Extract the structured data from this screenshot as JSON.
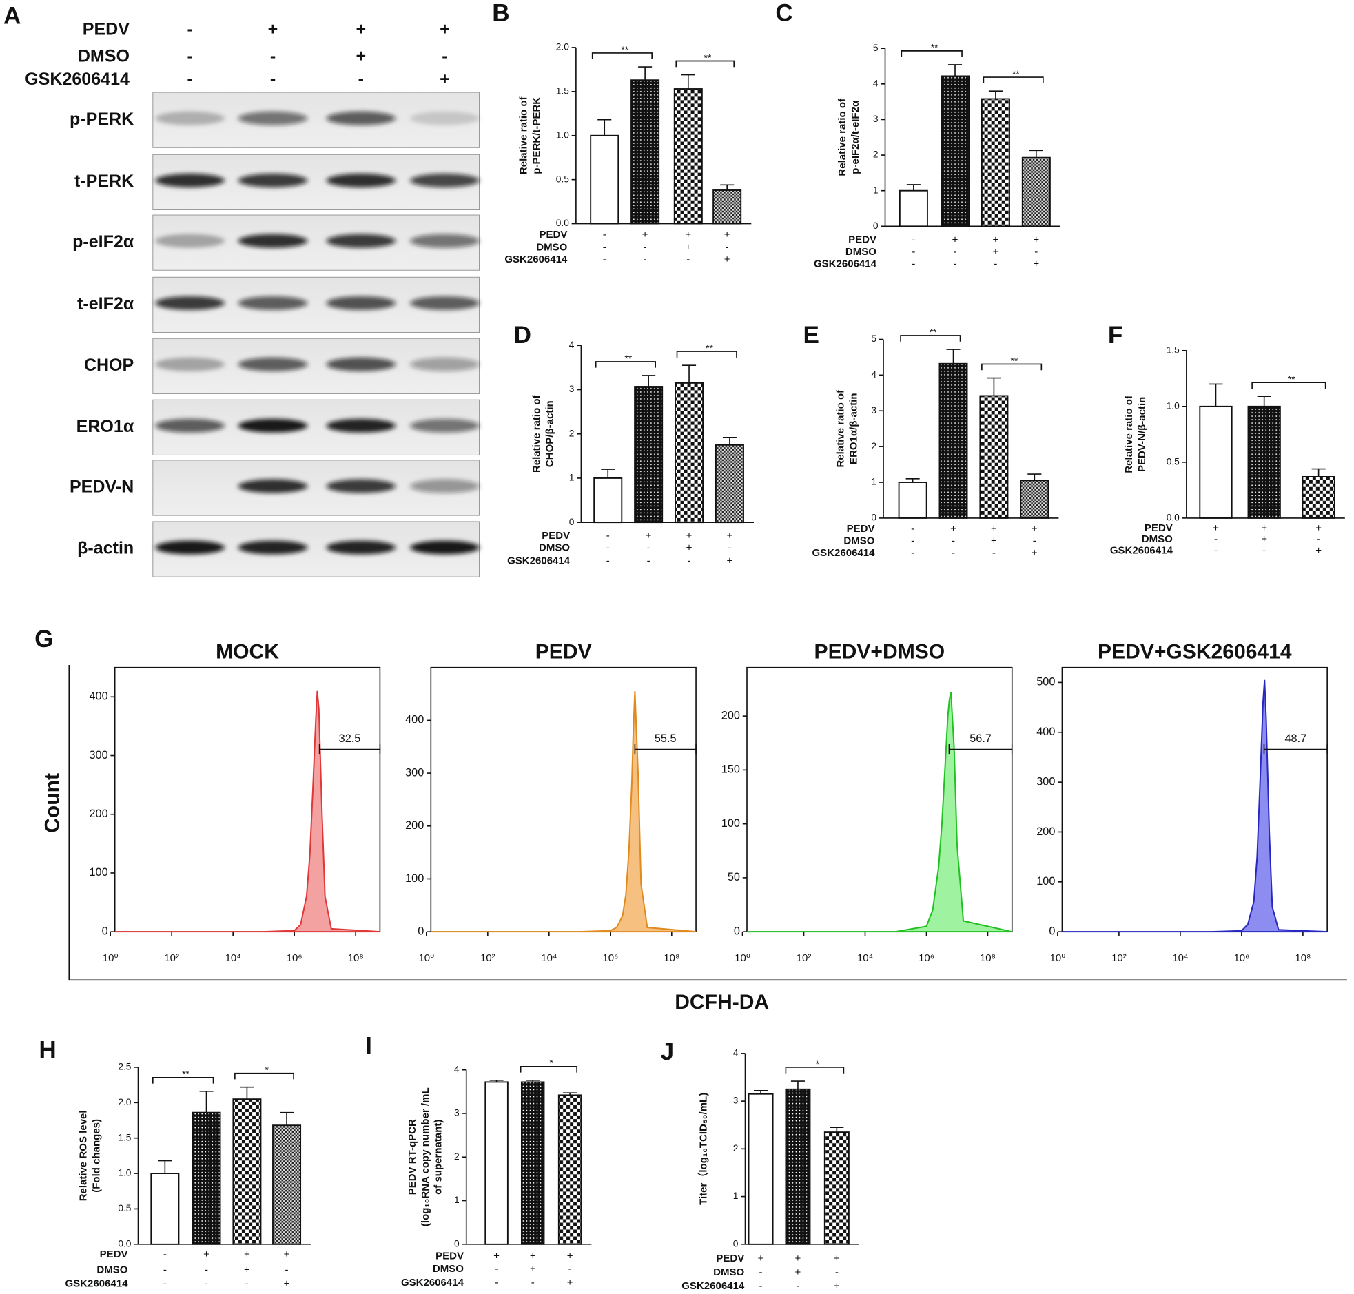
{
  "blot": {
    "panel": "A",
    "conditions": [
      {
        "name": "PEDV",
        "signs": [
          "-",
          "+",
          "+",
          "+"
        ]
      },
      {
        "name": "DMSO",
        "signs": [
          "-",
          "-",
          "+",
          "-"
        ]
      },
      {
        "name": "GSK2606414",
        "signs": [
          "-",
          "-",
          "-",
          "+"
        ]
      }
    ],
    "bands": [
      {
        "label": "p-PERK",
        "intensity": [
          0.25,
          0.55,
          0.65,
          0.15
        ]
      },
      {
        "label": "t-PERK",
        "intensity": [
          0.85,
          0.8,
          0.85,
          0.75
        ]
      },
      {
        "label": "p-eIF2α",
        "intensity": [
          0.3,
          0.85,
          0.8,
          0.55
        ]
      },
      {
        "label": "t-eIF2α",
        "intensity": [
          0.8,
          0.65,
          0.7,
          0.65
        ]
      },
      {
        "label": "CHOP",
        "intensity": [
          0.3,
          0.65,
          0.7,
          0.35
        ]
      },
      {
        "label": "ERO1α",
        "intensity": [
          0.65,
          0.95,
          0.9,
          0.55
        ]
      },
      {
        "label": "PEDV-N",
        "intensity": [
          0,
          0.85,
          0.8,
          0.4
        ]
      },
      {
        "label": "β-actin",
        "intensity": [
          0.95,
          0.9,
          0.9,
          0.95
        ]
      }
    ]
  },
  "flow": {
    "panel": "G",
    "ylabel": "Count",
    "xlabel": "DCFH-DA"
  },
  "chart_data": [
    {
      "type": "bar",
      "panel": "B",
      "ylabel": [
        "Relative ratio of",
        "p-PERK/t-PERK"
      ],
      "ylim": [
        0,
        2
      ],
      "yticks": [
        {
          "value": 0,
          "label": "0.0"
        },
        0.5,
        {
          "value": 1,
          "label": "1.0"
        },
        1.5,
        {
          "value": 2,
          "label": "2.0"
        }
      ],
      "values": [
        1.0,
        1.63,
        1.53,
        0.38
      ],
      "errors": [
        0.18,
        0.15,
        0.16,
        0.06
      ],
      "patterns": [
        "open",
        "dots",
        "checker",
        "fine-checker"
      ],
      "conditions": [
        {
          "name": "PEDV",
          "signs": [
            "-",
            "+",
            "+",
            "+"
          ]
        },
        {
          "name": "DMSO",
          "signs": [
            "-",
            "-",
            "+",
            "-"
          ]
        },
        {
          "name": "GSK2606414",
          "signs": [
            "-",
            "-",
            "-",
            "+"
          ]
        }
      ],
      "brackets": [
        {
          "bars": [
            0,
            1
          ],
          "label": "**"
        },
        {
          "bars": [
            2,
            3
          ],
          "label": "**"
        }
      ]
    },
    {
      "type": "bar",
      "panel": "C",
      "ylabel": [
        "Relative ratio of",
        "p-eIF2α/t-eIF2α"
      ],
      "ylim": [
        0,
        5
      ],
      "yticks": [
        0,
        1,
        2,
        3,
        4,
        5
      ],
      "values": [
        1.0,
        4.22,
        3.58,
        1.93
      ],
      "errors": [
        0.17,
        0.32,
        0.22,
        0.2
      ],
      "patterns": [
        "open",
        "dots",
        "checker",
        "fine-checker"
      ],
      "conditions": [
        {
          "name": "PEDV",
          "signs": [
            "-",
            "+",
            "+",
            "+"
          ]
        },
        {
          "name": "DMSO",
          "signs": [
            "-",
            "-",
            "+",
            "-"
          ]
        },
        {
          "name": "GSK2606414",
          "signs": [
            "-",
            "-",
            "-",
            "+"
          ]
        }
      ],
      "brackets": [
        {
          "bars": [
            0,
            1
          ],
          "label": "**"
        },
        {
          "bars": [
            2,
            3
          ],
          "label": "**"
        }
      ]
    },
    {
      "type": "bar",
      "panel": "D",
      "ylabel": [
        "Relative ratio of",
        "CHOP/β-actin"
      ],
      "ylim": [
        0,
        4
      ],
      "yticks": [
        0,
        1,
        2,
        3,
        4
      ],
      "values": [
        1.0,
        3.07,
        3.15,
        1.75
      ],
      "errors": [
        0.2,
        0.25,
        0.4,
        0.17
      ],
      "patterns": [
        "open",
        "dots",
        "checker",
        "fine-checker"
      ],
      "conditions": [
        {
          "name": "PEDV",
          "signs": [
            "-",
            "+",
            "+",
            "+"
          ]
        },
        {
          "name": "DMSO",
          "signs": [
            "-",
            "-",
            "+",
            "-"
          ]
        },
        {
          "name": "GSK2606414",
          "signs": [
            "-",
            "-",
            "-",
            "+"
          ]
        }
      ],
      "brackets": [
        {
          "bars": [
            0,
            1
          ],
          "label": "**"
        },
        {
          "bars": [
            2,
            3
          ],
          "label": "**"
        }
      ]
    },
    {
      "type": "bar",
      "panel": "E",
      "ylabel": [
        "Relative ratio of",
        "ERO1α/β-actin"
      ],
      "ylim": [
        0,
        5
      ],
      "yticks": [
        0,
        1,
        2,
        3,
        4,
        5
      ],
      "values": [
        1.0,
        4.32,
        3.42,
        1.05
      ],
      "errors": [
        0.1,
        0.4,
        0.5,
        0.18
      ],
      "patterns": [
        "open",
        "dots",
        "checker",
        "fine-checker"
      ],
      "conditions": [
        {
          "name": "PEDV",
          "signs": [
            "-",
            "+",
            "+",
            "+"
          ]
        },
        {
          "name": "DMSO",
          "signs": [
            "-",
            "-",
            "+",
            "-"
          ]
        },
        {
          "name": "GSK2606414",
          "signs": [
            "-",
            "-",
            "-",
            "+"
          ]
        }
      ],
      "brackets": [
        {
          "bars": [
            0,
            1
          ],
          "label": "**"
        },
        {
          "bars": [
            2,
            3
          ],
          "label": "**"
        }
      ]
    },
    {
      "type": "bar",
      "panel": "F",
      "ylabel": [
        "Relative ratio of",
        "PEDV-N/β-actin"
      ],
      "ylim": [
        0,
        1.5
      ],
      "yticks": [
        {
          "value": 0,
          "label": "0.0"
        },
        0.5,
        {
          "value": 1,
          "label": "1.0"
        },
        1.5
      ],
      "values": [
        1.0,
        1.0,
        0.37
      ],
      "errors": [
        0.2,
        0.09,
        0.07
      ],
      "patterns": [
        "open",
        "dots",
        "checker"
      ],
      "conditions": [
        {
          "name": "PEDV",
          "signs": [
            "+",
            "+",
            "+"
          ]
        },
        {
          "name": "DMSO",
          "signs": [
            "-",
            "+",
            "-"
          ]
        },
        {
          "name": "GSK2606414",
          "signs": [
            "-",
            "-",
            "+"
          ]
        }
      ],
      "brackets": [
        {
          "bars": [
            1,
            2
          ],
          "label": "**"
        }
      ]
    },
    {
      "type": "bar",
      "panel": "H",
      "ylabel": [
        "Relative ROS level",
        "(Fold changes)"
      ],
      "ylim": [
        0,
        2.5
      ],
      "yticks": [
        {
          "value": 0,
          "label": "0.0"
        },
        0.5,
        {
          "value": 1,
          "label": "1.0"
        },
        1.5,
        {
          "value": 2,
          "label": "2.0"
        },
        2.5
      ],
      "values": [
        1.0,
        1.86,
        2.05,
        1.68
      ],
      "errors": [
        0.18,
        0.3,
        0.17,
        0.18
      ],
      "patterns": [
        "open",
        "dots",
        "checker",
        "fine-checker"
      ],
      "conditions": [
        {
          "name": "PEDV",
          "signs": [
            "-",
            "+",
            "+",
            "+"
          ]
        },
        {
          "name": "DMSO",
          "signs": [
            "-",
            "-",
            "+",
            "-"
          ]
        },
        {
          "name": "GSK2606414",
          "signs": [
            "-",
            "-",
            "-",
            "+"
          ]
        }
      ],
      "brackets": [
        {
          "bars": [
            0,
            1
          ],
          "label": "**"
        },
        {
          "bars": [
            2,
            3
          ],
          "label": "*"
        }
      ]
    },
    {
      "type": "bar",
      "panel": "I",
      "ylabel": [
        "PEDV RT-qPCR",
        "(log₁₀RNA copy number /mL",
        "of supernatant)"
      ],
      "ylim": [
        0,
        4
      ],
      "yticks": [
        0,
        1,
        2,
        3,
        4
      ],
      "values": [
        3.72,
        3.72,
        3.42
      ],
      "errors": [
        0.04,
        0.04,
        0.05
      ],
      "patterns": [
        "open",
        "dots",
        "checker"
      ],
      "conditions": [
        {
          "name": "PEDV",
          "signs": [
            "+",
            "+",
            "+"
          ]
        },
        {
          "name": "DMSO",
          "signs": [
            "-",
            "+",
            "-"
          ]
        },
        {
          "name": "GSK2606414",
          "signs": [
            "-",
            "-",
            "+"
          ]
        }
      ],
      "brackets": [
        {
          "bars": [
            1,
            2
          ],
          "label": "*"
        }
      ]
    },
    {
      "type": "bar",
      "panel": "J",
      "ylabel": [
        "Titer（log₁₀TCID₅₀/mL)"
      ],
      "ylim": [
        0,
        4
      ],
      "yticks": [
        0,
        1,
        2,
        3,
        4
      ],
      "values": [
        3.15,
        3.25,
        2.35
      ],
      "errors": [
        0.07,
        0.17,
        0.1
      ],
      "patterns": [
        "open",
        "dots",
        "checker"
      ],
      "conditions": [
        {
          "name": "PEDV",
          "signs": [
            "+",
            "+",
            "+"
          ]
        },
        {
          "name": "DMSO",
          "signs": [
            "-",
            "+",
            "-"
          ]
        },
        {
          "name": "GSK2606414",
          "signs": [
            "-",
            "-",
            "+"
          ]
        }
      ],
      "brackets": [
        {
          "bars": [
            1,
            2
          ],
          "label": "*"
        }
      ]
    },
    {
      "type": "area",
      "title": "MOCK",
      "color": "#e03838",
      "fill": "#f29090",
      "xscale": "log",
      "xlim": [
        1.4,
        620000000
      ],
      "xticks": [
        {
          "value": 1,
          "label": "10⁰"
        },
        {
          "value": 100,
          "label": "10²"
        },
        {
          "value": 10000,
          "label": "10⁴"
        },
        {
          "value": 1000000,
          "label": "10⁶"
        },
        {
          "value": 100000000,
          "label": "10⁸"
        }
      ],
      "ylim": [
        0,
        450
      ],
      "yticks": [
        0,
        100,
        200,
        300,
        400
      ],
      "x": [
        1.4,
        100000,
        1000000,
        1600000,
        2500000,
        3200000,
        4000000,
        5000000,
        5600000,
        6300000,
        8000000,
        10000000,
        16000000,
        620000000
      ],
      "values": [
        0,
        0,
        2,
        12,
        60,
        130,
        240,
        360,
        410,
        380,
        200,
        60,
        5,
        0
      ],
      "gate_value": 32.5,
      "gate_range": [
        6600000,
        620000000
      ]
    },
    {
      "type": "area",
      "title": "PEDV",
      "color": "#e08a20",
      "fill": "#f5b66a",
      "xscale": "log",
      "xlim": [
        1.4,
        620000000
      ],
      "xticks": [
        {
          "value": 1,
          "label": "10⁰"
        },
        {
          "value": 100,
          "label": "10²"
        },
        {
          "value": 10000,
          "label": "10⁴"
        },
        {
          "value": 1000000,
          "label": "10⁶"
        },
        {
          "value": 100000000,
          "label": "10⁸"
        }
      ],
      "ylim": [
        0,
        500
      ],
      "yticks": [
        0,
        100,
        200,
        300,
        400
      ],
      "x": [
        1.4,
        100000,
        1000000,
        1600000,
        2500000,
        3200000,
        4000000,
        5000000,
        5600000,
        6300000,
        8000000,
        10000000,
        16000000,
        620000000
      ],
      "values": [
        0,
        0,
        2,
        8,
        30,
        70,
        150,
        280,
        380,
        455,
        300,
        90,
        8,
        0
      ],
      "gate_value": 55.5,
      "gate_range": [
        6300000,
        620000000
      ]
    },
    {
      "type": "area",
      "title": "PEDV+DMSO",
      "color": "#22c022",
      "fill": "#8ef08e",
      "xscale": "log",
      "xlim": [
        1.4,
        620000000
      ],
      "xticks": [
        {
          "value": 1,
          "label": "10⁰"
        },
        {
          "value": 100,
          "label": "10²"
        },
        {
          "value": 10000,
          "label": "10⁴"
        },
        {
          "value": 1000000,
          "label": "10⁶"
        },
        {
          "value": 100000000,
          "label": "10⁸"
        }
      ],
      "ylim": [
        0,
        245
      ],
      "yticks": [
        0,
        50,
        100,
        150,
        200
      ],
      "x": [
        1.4,
        100000,
        1000000,
        1600000,
        2500000,
        3200000,
        4000000,
        5000000,
        5600000,
        6300000,
        8000000,
        10000000,
        16000000,
        620000000
      ],
      "values": [
        0,
        0,
        5,
        20,
        60,
        100,
        150,
        200,
        215,
        222,
        170,
        80,
        10,
        0
      ],
      "gate_value": 56.7,
      "gate_range": [
        5500000,
        620000000
      ]
    },
    {
      "type": "area",
      "title": "PEDV+GSK2606414",
      "color": "#2828c0",
      "fill": "#7878ee",
      "xscale": "log",
      "xlim": [
        1.4,
        620000000
      ],
      "xticks": [
        {
          "value": 1,
          "label": "10⁰"
        },
        {
          "value": 100,
          "label": "10²"
        },
        {
          "value": 10000,
          "label": "10⁴"
        },
        {
          "value": 1000000,
          "label": "10⁶"
        },
        {
          "value": 100000000,
          "label": "10⁸"
        }
      ],
      "ylim": [
        0,
        530
      ],
      "yticks": [
        0,
        100,
        200,
        300,
        400,
        500
      ],
      "x": [
        1.4,
        100000,
        1000000,
        1600000,
        2500000,
        3200000,
        4000000,
        5000000,
        5600000,
        6300000,
        8000000,
        10000000,
        16000000,
        620000000
      ],
      "values": [
        0,
        0,
        2,
        15,
        60,
        150,
        300,
        460,
        505,
        430,
        200,
        50,
        4,
        0
      ],
      "gate_value": 48.7,
      "gate_range": [
        5400000,
        620000000
      ]
    }
  ]
}
